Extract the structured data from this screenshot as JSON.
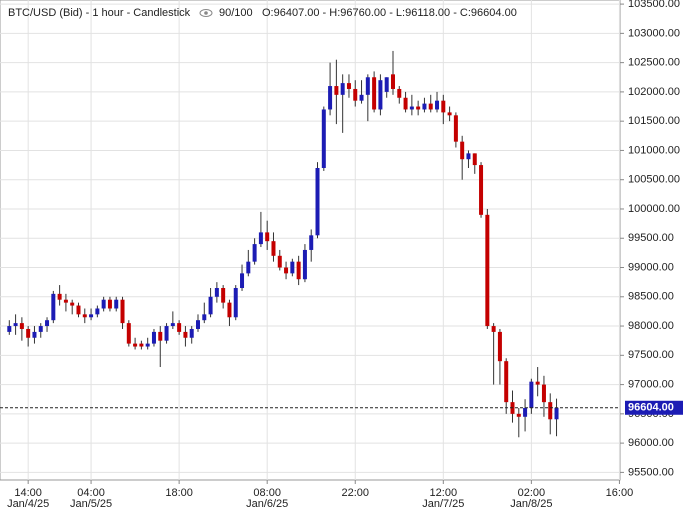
{
  "chart_data": {
    "type": "candlestick",
    "title": "BTC/USD (Bid) - 1 hour - Candlestick",
    "counter": "90/100",
    "ohlc_text": "O:96407.00 - H:96760.00 - L:96118.00 - C:96604.00",
    "categories": [
      null,
      null,
      null,
      "14:00",
      null,
      null,
      null,
      null,
      null,
      null,
      null,
      null,
      null,
      "04:00",
      null,
      null,
      null,
      null,
      null,
      null,
      null,
      null,
      null,
      null,
      null,
      null,
      null,
      "18:00",
      null,
      null,
      null,
      null,
      null,
      null,
      null,
      null,
      null,
      null,
      null,
      null,
      null,
      "08:00",
      null,
      null,
      null,
      null,
      null,
      null,
      null,
      null,
      null,
      null,
      null,
      null,
      null,
      "22:00",
      null,
      null,
      null,
      null,
      null,
      null,
      null,
      null,
      null,
      null,
      null,
      null,
      null,
      "12:00",
      null,
      null,
      null,
      null,
      null,
      null,
      null,
      null,
      null,
      null,
      null,
      null,
      null,
      "02:00",
      null,
      null,
      null,
      null,
      null,
      null,
      null,
      null,
      null,
      null,
      null,
      null,
      null,
      "16:00"
    ],
    "dates": [
      null,
      null,
      null,
      "Jan/4/25",
      null,
      null,
      null,
      null,
      null,
      null,
      null,
      null,
      null,
      "Jan/5/25",
      null,
      null,
      null,
      null,
      null,
      null,
      null,
      null,
      null,
      null,
      null,
      null,
      null,
      null,
      null,
      null,
      null,
      null,
      null,
      null,
      null,
      null,
      null,
      null,
      null,
      null,
      null,
      "Jan/6/25",
      null,
      null,
      null,
      null,
      null,
      null,
      null,
      null,
      null,
      null,
      null,
      null,
      null,
      null,
      null,
      null,
      null,
      null,
      null,
      null,
      null,
      null,
      null,
      null,
      null,
      null,
      null,
      "Jan/7/25",
      null,
      null,
      null,
      null,
      null,
      null,
      null,
      null,
      null,
      null,
      null,
      null,
      null,
      "Jan/8/25",
      null,
      null,
      null,
      null,
      null,
      null,
      null,
      null,
      null,
      null,
      null,
      null,
      null,
      null
    ],
    "open": [
      97900,
      98000,
      98050,
      97950,
      97800,
      97900,
      98000,
      98100,
      98550,
      98450,
      98400,
      98350,
      98200,
      98150,
      98200,
      98300,
      98450,
      98300,
      98450,
      98050,
      97700,
      97700,
      97650,
      97700,
      97900,
      97750,
      98000,
      98050,
      97900,
      97800,
      97950,
      98100,
      98200,
      98500,
      98650,
      98400,
      98150,
      98650,
      98900,
      99100,
      99400,
      99600,
      99450,
      99200,
      99000,
      98900,
      99100,
      98800,
      99300,
      99550,
      100700,
      101700,
      102100,
      101950,
      102150,
      102050,
      101850,
      101950,
      102250,
      101700,
      102000,
      102300,
      102050,
      101900,
      101700,
      101750,
      101700,
      101800,
      101700,
      101850,
      101650,
      101600,
      101150,
      100850,
      100950,
      100750,
      99900,
      98000,
      97900,
      97400,
      96700,
      96500,
      96450,
      96600,
      97050,
      97000,
      96700,
      96407,
      null,
      null,
      null,
      null,
      null,
      null,
      null,
      null,
      null,
      null
    ],
    "high": [
      98100,
      98200,
      98150,
      98000,
      98000,
      98050,
      98150,
      98600,
      98700,
      98550,
      98450,
      98400,
      98300,
      98300,
      98350,
      98500,
      98500,
      98500,
      98500,
      98100,
      97800,
      97750,
      97800,
      97950,
      98000,
      98050,
      98250,
      98100,
      98000,
      98000,
      98200,
      98400,
      98650,
      98750,
      98700,
      98450,
      98700,
      99050,
      99300,
      99500,
      99950,
      99800,
      99600,
      99300,
      99100,
      99150,
      99200,
      99400,
      99650,
      100800,
      101750,
      102500,
      102550,
      102300,
      102300,
      102200,
      102200,
      102300,
      102350,
      102300,
      102250,
      102700,
      102100,
      102000,
      101950,
      101850,
      101900,
      101950,
      102000,
      101950,
      101750,
      101650,
      101250,
      101000,
      100950,
      100800,
      100000,
      98050,
      97950,
      97450,
      96900,
      96600,
      96750,
      97100,
      97300,
      97150,
      96850,
      96760,
      null,
      null,
      null,
      null,
      null,
      null,
      null,
      null,
      null,
      null
    ],
    "low": [
      97850,
      97850,
      97750,
      97650,
      97700,
      97800,
      97900,
      98050,
      98350,
      98250,
      98200,
      98150,
      98050,
      98100,
      98150,
      98250,
      98250,
      98250,
      97950,
      97650,
      97600,
      97600,
      97600,
      97650,
      97300,
      97700,
      97950,
      97850,
      97650,
      97700,
      97900,
      98050,
      98150,
      98400,
      98300,
      98000,
      98100,
      98600,
      98850,
      99050,
      99350,
      99300,
      99100,
      98950,
      98800,
      98850,
      98700,
      98750,
      99100,
      99500,
      100650,
      101600,
      101450,
      101300,
      101900,
      101750,
      101800,
      101500,
      101650,
      101600,
      101900,
      101950,
      101800,
      101650,
      101600,
      101600,
      101650,
      101650,
      101650,
      101450,
      101500,
      101050,
      100500,
      100700,
      100600,
      99850,
      97950,
      97000,
      97000,
      96500,
      96350,
      96100,
      96200,
      96500,
      96800,
      96450,
      96150,
      96118,
      null,
      null,
      null,
      null,
      null,
      null,
      null,
      null,
      null,
      null
    ],
    "close": [
      98000,
      98050,
      97950,
      97800,
      97900,
      98000,
      98100,
      98550,
      98450,
      98400,
      98350,
      98200,
      98150,
      98200,
      98300,
      98450,
      98300,
      98450,
      98050,
      97700,
      97650,
      97650,
      97700,
      97900,
      97750,
      98000,
      98050,
      97900,
      97800,
      97950,
      98100,
      98200,
      98500,
      98650,
      98400,
      98150,
      98650,
      98900,
      99100,
      99400,
      99600,
      99450,
      99200,
      99000,
      98900,
      99100,
      98800,
      99300,
      99550,
      100700,
      101700,
      102100,
      101950,
      102150,
      102050,
      101850,
      101950,
      102250,
      101700,
      102200,
      102250,
      102050,
      101900,
      101700,
      101750,
      101700,
      101800,
      101700,
      101850,
      101650,
      101600,
      101150,
      100850,
      100950,
      100750,
      99900,
      98000,
      97900,
      97400,
      96700,
      96500,
      96450,
      96600,
      97050,
      97000,
      96700,
      96407,
      96604,
      null,
      null,
      null,
      null,
      null,
      null,
      null,
      null,
      null,
      null
    ],
    "up_color": "#1c1cb4",
    "down_color": "#c40000",
    "ylim": [
      95370,
      103570
    ],
    "yticks": [
      {
        "value": 95500,
        "label": "95500.00"
      },
      {
        "value": 96000,
        "label": "96000.00"
      },
      {
        "value": 96500,
        "label": "96500.00"
      },
      {
        "value": 97000,
        "label": "97000.00"
      },
      {
        "value": 97500,
        "label": "97500.00"
      },
      {
        "value": 98000,
        "label": "98000.00"
      },
      {
        "value": 98500,
        "label": "98500.00"
      },
      {
        "value": 99000,
        "label": "99000.00"
      },
      {
        "value": 99500,
        "label": "99500.00"
      },
      {
        "value": 100000,
        "label": "100000.00"
      },
      {
        "value": 100500,
        "label": "100500.00"
      },
      {
        "value": 101000,
        "label": "101000.00"
      },
      {
        "value": 101500,
        "label": "101500.00"
      },
      {
        "value": 102000,
        "label": "102000.00"
      },
      {
        "value": 102500,
        "label": "102500.00"
      },
      {
        "value": 103000,
        "label": "103000.00"
      },
      {
        "value": 103500,
        "label": "103500.00"
      }
    ],
    "last_price": {
      "value": 96604,
      "label": "96604.00"
    },
    "grid": true
  }
}
